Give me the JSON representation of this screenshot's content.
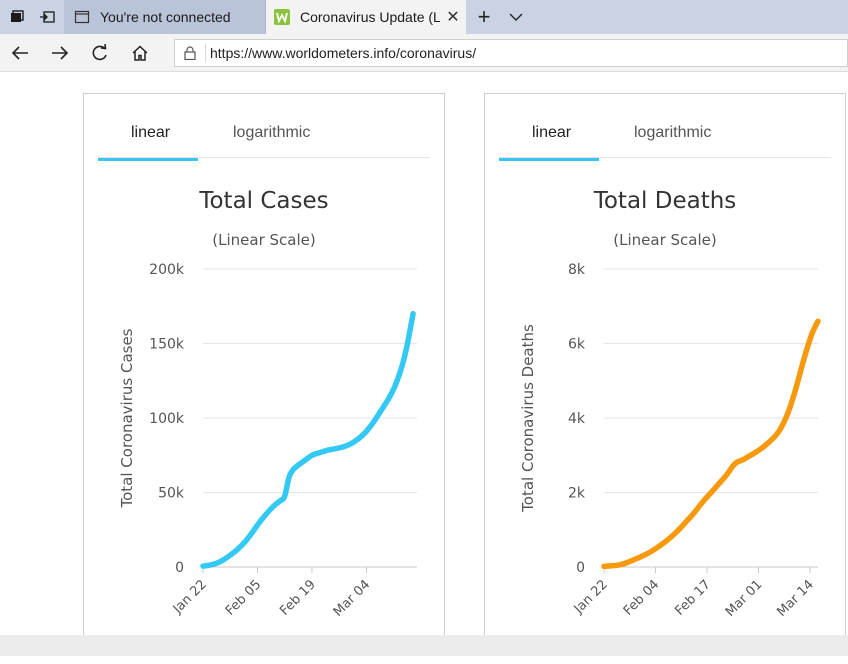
{
  "browser": {
    "tabs": [
      {
        "title": "You're not connected",
        "active": false
      },
      {
        "title": "Coronavirus Update (Liv",
        "active": true
      }
    ],
    "url": "https://www.worldometers.info/coronavirus/"
  },
  "cases_card": {
    "tab_linear": "linear",
    "tab_log": "logarithmic"
  },
  "deaths_card": {
    "tab_linear": "linear",
    "tab_log": "logarithmic"
  },
  "colors": {
    "cases_line": "#33c9f4",
    "deaths_line": "#f7990c",
    "tab_accent": "#3bc4ef"
  },
  "chart_data": [
    {
      "type": "line",
      "title": "Total Cases",
      "subtitle": "(Linear Scale)",
      "ylabel": "Total Coronavirus Cases",
      "xlabel": "",
      "ylim": [
        0,
        200000
      ],
      "yticks": [
        0,
        50000,
        100000,
        150000,
        200000
      ],
      "ytick_labels": [
        "0",
        "50k",
        "100k",
        "150k",
        "200k"
      ],
      "xrange_days": [
        0,
        55
      ],
      "xticks": [
        {
          "day": 0,
          "label": "Jan 22"
        },
        {
          "day": 14,
          "label": "Feb 05"
        },
        {
          "day": 28,
          "label": "Feb 19"
        },
        {
          "day": 42,
          "label": "Mar 04"
        }
      ],
      "grid": true,
      "series": [
        {
          "color": "#33c9f4",
          "x": [
            0,
            2,
            4,
            6,
            8,
            10,
            12,
            14,
            16,
            18,
            20,
            21,
            22,
            23,
            24,
            26,
            28,
            30,
            32,
            34,
            36,
            38,
            40,
            42,
            44,
            46,
            48,
            50,
            52,
            54
          ],
          "y": [
            580,
            1300,
            2800,
            6000,
            9800,
            14500,
            20600,
            28300,
            34900,
            40600,
            44900,
            46000,
            60400,
            65000,
            67500,
            71300,
            75200,
            76700,
            78500,
            79400,
            80400,
            82600,
            86000,
            90800,
            97700,
            106000,
            114000,
            125000,
            142000,
            170000
          ]
        }
      ]
    },
    {
      "type": "line",
      "title": "Total Deaths",
      "subtitle": "(Linear Scale)",
      "ylabel": "Total Coronavirus Deaths",
      "xlabel": "",
      "ylim": [
        0,
        8000
      ],
      "yticks": [
        0,
        2000,
        4000,
        6000,
        8000
      ],
      "ytick_labels": [
        "0",
        "2k",
        "4k",
        "6k",
        "8k"
      ],
      "xrange_days": [
        0,
        54
      ],
      "xticks": [
        {
          "day": 0,
          "label": "Jan 22"
        },
        {
          "day": 13,
          "label": "Feb 04"
        },
        {
          "day": 26,
          "label": "Feb 17"
        },
        {
          "day": 39,
          "label": "Mar 01"
        },
        {
          "day": 52,
          "label": "Mar 14"
        }
      ],
      "grid": true,
      "series": [
        {
          "color": "#f7990c",
          "x": [
            0,
            3,
            5,
            7,
            9,
            11,
            13,
            15,
            17,
            19,
            21,
            23,
            25,
            27,
            29,
            31,
            33,
            35,
            36,
            38,
            40,
            42,
            44,
            46,
            48,
            50,
            52,
            53,
            54
          ],
          "y": [
            17,
            40,
            80,
            170,
            260,
            360,
            490,
            640,
            810,
            1010,
            1250,
            1480,
            1770,
            1990,
            2240,
            2470,
            2800,
            2870,
            2940,
            3060,
            3200,
            3380,
            3600,
            4000,
            4620,
            5420,
            6140,
            6400,
            6600
          ]
        }
      ]
    }
  ]
}
